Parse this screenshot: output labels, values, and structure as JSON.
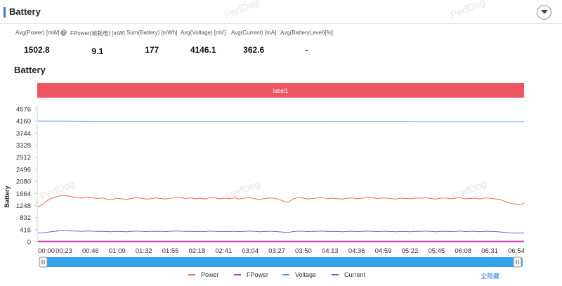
{
  "header": {
    "title": "Battery"
  },
  "metrics": [
    {
      "label": "Avg(Power) [mW]",
      "value": "1502.8"
    },
    {
      "label": "FPower(帧耗电) [mW]",
      "value": "9.1"
    },
    {
      "label": "Sum(Battery) [mWh]",
      "value": "177"
    },
    {
      "label": "Avg(Voltage) [mV]",
      "value": "4146.1"
    },
    {
      "label": "Avg(Current) [mA]",
      "value": "362.6"
    },
    {
      "label": "Avg(BatteryLevel)[%]",
      "value": "-"
    }
  ],
  "section": {
    "title": "Battery"
  },
  "watermark": "PerfDog",
  "legend_controls": {
    "hide_all": "全隐藏"
  },
  "chart_data": {
    "type": "line",
    "band_label": "label1",
    "ylabel": "Battery",
    "ylim": [
      0,
      4576
    ],
    "yticks": [
      0,
      416,
      832,
      1248,
      1664,
      2080,
      2496,
      2912,
      3328,
      3744,
      4160,
      4576
    ],
    "xticks": [
      "00:00",
      "00:23",
      "00:46",
      "01:09",
      "01:32",
      "01:55",
      "02:18",
      "02:41",
      "03:04",
      "03:27",
      "03:50",
      "04:13",
      "04:36",
      "04:59",
      "05:22",
      "05:45",
      "06:08",
      "06:31",
      "06:54"
    ],
    "x_range_seconds": [
      0,
      434
    ],
    "grid": false,
    "legend_position": "bottom",
    "series": [
      {
        "name": "Power",
        "color": "#e8704c",
        "values": [
          1200,
          1290,
          1430,
          1510,
          1560,
          1600,
          1580,
          1550,
          1520,
          1500,
          1540,
          1520,
          1490,
          1510,
          1470,
          1450,
          1500,
          1480,
          1460,
          1490,
          1520,
          1500,
          1470,
          1480,
          1510,
          1490,
          1470,
          1500,
          1530,
          1520,
          1490,
          1510,
          1480,
          1500,
          1470,
          1520,
          1510,
          1480,
          1500,
          1490,
          1510,
          1470,
          1500,
          1520,
          1490,
          1460,
          1480,
          1510,
          1500,
          1460,
          1400,
          1360,
          1480,
          1520,
          1500,
          1470,
          1490,
          1510,
          1520,
          1480,
          1500,
          1480,
          1470,
          1500,
          1510,
          1480,
          1500,
          1530,
          1520,
          1490,
          1500,
          1510,
          1480,
          1470,
          1500,
          1490,
          1480,
          1510,
          1500,
          1520,
          1490,
          1470,
          1500,
          1510,
          1480,
          1500,
          1520,
          1480,
          1490,
          1500,
          1470,
          1510,
          1500,
          1480,
          1460,
          1400,
          1340,
          1300,
          1280,
          1320
        ]
      },
      {
        "name": "FPower",
        "color": "#c33fb3",
        "values": [
          9,
          9,
          9,
          9,
          9,
          9,
          9,
          9,
          9,
          9,
          9,
          9,
          9,
          9,
          9,
          9,
          9,
          9,
          9,
          9,
          9,
          9,
          9,
          9,
          9,
          9,
          9,
          9,
          9,
          9,
          9,
          9,
          9,
          9,
          9,
          9,
          9,
          9,
          9,
          9,
          9,
          9,
          9,
          9,
          9,
          9,
          9,
          9,
          9,
          9
        ]
      },
      {
        "name": "Voltage",
        "color": "#4e96e0",
        "values": [
          4160,
          4158,
          4157,
          4155,
          4154,
          4153,
          4152,
          4151,
          4150,
          4149,
          4149,
          4148,
          4148,
          4147,
          4147,
          4146,
          4146,
          4146,
          4145,
          4145,
          4145,
          4144,
          4144,
          4144,
          4143,
          4143,
          4143,
          4142,
          4142,
          4142,
          4141,
          4141,
          4141,
          4140,
          4140,
          4140,
          4139,
          4139,
          4139,
          4138
        ]
      },
      {
        "name": "Current",
        "color": "#8a55d6",
        "values": [
          300,
          310,
          330,
          350,
          370,
          380,
          375,
          370,
          365,
          360,
          370,
          365,
          355,
          360,
          350,
          345,
          355,
          350,
          345,
          355,
          365,
          360,
          350,
          355,
          360,
          355,
          350,
          360,
          370,
          365,
          355,
          360,
          350,
          355,
          350,
          365,
          360,
          350,
          355,
          350,
          360,
          350,
          355,
          365,
          360,
          345,
          350,
          360,
          355,
          345,
          330,
          320,
          350,
          365,
          360,
          350,
          355,
          360,
          365,
          350,
          355,
          350,
          345,
          355,
          360,
          350,
          355,
          365,
          360,
          350,
          355,
          360,
          350,
          345,
          355,
          350,
          345,
          360,
          355,
          365,
          355,
          345,
          355,
          360,
          350,
          355,
          365,
          350,
          355,
          360,
          345,
          360,
          355,
          350,
          340,
          325,
          310,
          300,
          295,
          305
        ]
      }
    ]
  }
}
